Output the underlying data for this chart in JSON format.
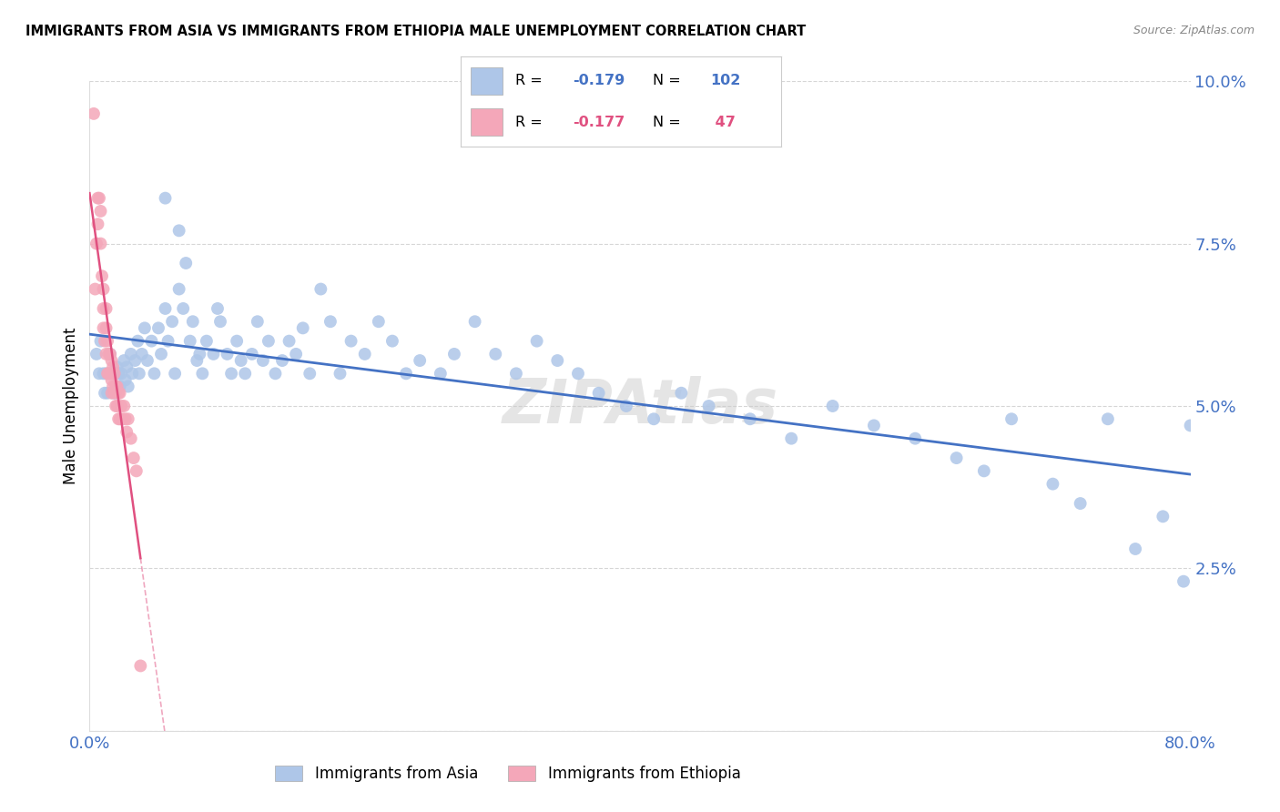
{
  "title": "IMMIGRANTS FROM ASIA VS IMMIGRANTS FROM ETHIOPIA MALE UNEMPLOYMENT CORRELATION CHART",
  "source": "Source: ZipAtlas.com",
  "ylabel": "Male Unemployment",
  "xlim": [
    0,
    0.8
  ],
  "ylim": [
    0,
    0.1
  ],
  "yticks": [
    0.0,
    0.025,
    0.05,
    0.075,
    0.1
  ],
  "ytick_labels": [
    "",
    "2.5%",
    "5.0%",
    "7.5%",
    "10.0%"
  ],
  "xticks": [
    0.0,
    0.1,
    0.2,
    0.3,
    0.4,
    0.5,
    0.6,
    0.7,
    0.8
  ],
  "xtick_labels": [
    "0.0%",
    "",
    "",
    "",
    "",
    "",
    "",
    "",
    "80.0%"
  ],
  "axis_color": "#4472C4",
  "grid_color": "#CCCCCC",
  "asia_color": "#AEC6E8",
  "ethiopia_color": "#F4A7B9",
  "asia_line_color": "#4472C4",
  "ethiopia_line_color": "#E05080",
  "watermark": "ZIPAtlas",
  "asia_x": [
    0.005,
    0.007,
    0.008,
    0.01,
    0.011,
    0.012,
    0.013,
    0.015,
    0.016,
    0.017,
    0.018,
    0.019,
    0.02,
    0.021,
    0.022,
    0.023,
    0.025,
    0.026,
    0.027,
    0.028,
    0.03,
    0.031,
    0.033,
    0.035,
    0.036,
    0.038,
    0.04,
    0.042,
    0.045,
    0.047,
    0.05,
    0.052,
    0.055,
    0.057,
    0.06,
    0.062,
    0.065,
    0.068,
    0.07,
    0.073,
    0.075,
    0.078,
    0.08,
    0.082,
    0.085,
    0.09,
    0.093,
    0.095,
    0.1,
    0.103,
    0.107,
    0.11,
    0.113,
    0.118,
    0.122,
    0.126,
    0.13,
    0.135,
    0.14,
    0.145,
    0.15,
    0.155,
    0.16,
    0.168,
    0.175,
    0.182,
    0.19,
    0.2,
    0.21,
    0.22,
    0.23,
    0.24,
    0.255,
    0.265,
    0.28,
    0.295,
    0.31,
    0.325,
    0.34,
    0.355,
    0.37,
    0.39,
    0.41,
    0.43,
    0.45,
    0.48,
    0.51,
    0.54,
    0.57,
    0.6,
    0.63,
    0.65,
    0.67,
    0.7,
    0.72,
    0.74,
    0.76,
    0.78,
    0.795,
    0.8,
    0.055,
    0.065
  ],
  "asia_y": [
    0.058,
    0.055,
    0.06,
    0.055,
    0.052,
    0.055,
    0.052,
    0.058,
    0.055,
    0.052,
    0.055,
    0.052,
    0.056,
    0.055,
    0.053,
    0.055,
    0.057,
    0.054,
    0.056,
    0.053,
    0.058,
    0.055,
    0.057,
    0.06,
    0.055,
    0.058,
    0.062,
    0.057,
    0.06,
    0.055,
    0.062,
    0.058,
    0.065,
    0.06,
    0.063,
    0.055,
    0.068,
    0.065,
    0.072,
    0.06,
    0.063,
    0.057,
    0.058,
    0.055,
    0.06,
    0.058,
    0.065,
    0.063,
    0.058,
    0.055,
    0.06,
    0.057,
    0.055,
    0.058,
    0.063,
    0.057,
    0.06,
    0.055,
    0.057,
    0.06,
    0.058,
    0.062,
    0.055,
    0.068,
    0.063,
    0.055,
    0.06,
    0.058,
    0.063,
    0.06,
    0.055,
    0.057,
    0.055,
    0.058,
    0.063,
    0.058,
    0.055,
    0.06,
    0.057,
    0.055,
    0.052,
    0.05,
    0.048,
    0.052,
    0.05,
    0.048,
    0.045,
    0.05,
    0.047,
    0.045,
    0.042,
    0.04,
    0.048,
    0.038,
    0.035,
    0.048,
    0.028,
    0.033,
    0.023,
    0.047,
    0.082,
    0.077
  ],
  "ethiopia_x": [
    0.003,
    0.004,
    0.005,
    0.006,
    0.006,
    0.007,
    0.008,
    0.008,
    0.009,
    0.01,
    0.01,
    0.01,
    0.011,
    0.012,
    0.012,
    0.012,
    0.013,
    0.013,
    0.014,
    0.014,
    0.015,
    0.015,
    0.016,
    0.016,
    0.016,
    0.017,
    0.017,
    0.018,
    0.018,
    0.019,
    0.019,
    0.02,
    0.02,
    0.021,
    0.021,
    0.022,
    0.022,
    0.023,
    0.024,
    0.025,
    0.026,
    0.027,
    0.028,
    0.03,
    0.032,
    0.034,
    0.037
  ],
  "ethiopia_y": [
    0.095,
    0.068,
    0.075,
    0.082,
    0.078,
    0.082,
    0.08,
    0.075,
    0.07,
    0.068,
    0.065,
    0.062,
    0.06,
    0.065,
    0.062,
    0.058,
    0.06,
    0.055,
    0.058,
    0.055,
    0.058,
    0.055,
    0.057,
    0.054,
    0.052,
    0.056,
    0.053,
    0.055,
    0.052,
    0.053,
    0.05,
    0.053,
    0.05,
    0.052,
    0.048,
    0.052,
    0.048,
    0.05,
    0.048,
    0.05,
    0.048,
    0.046,
    0.048,
    0.045,
    0.042,
    0.04,
    0.01
  ]
}
